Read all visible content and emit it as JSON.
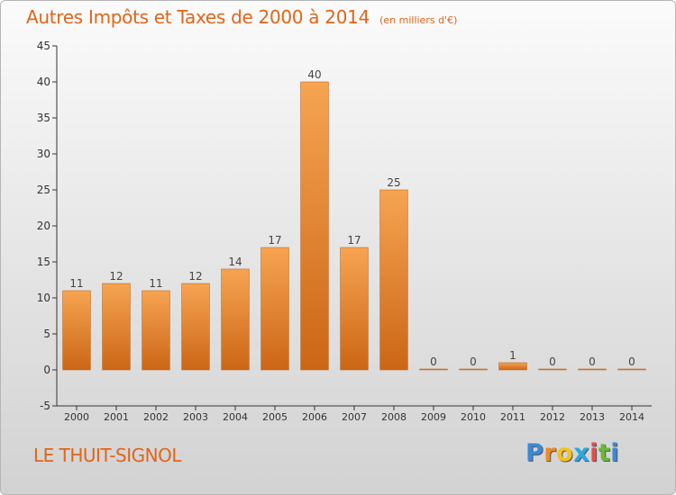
{
  "chart_data": {
    "type": "bar",
    "title": "Autres Impôts et Taxes de 2000 à 2014",
    "subtitle": "(en milliers d'€)",
    "categories": [
      "2000",
      "2001",
      "2002",
      "2003",
      "2004",
      "2005",
      "2006",
      "2007",
      "2008",
      "2009",
      "2010",
      "2011",
      "2012",
      "2013",
      "2014"
    ],
    "values": [
      11,
      12,
      11,
      12,
      14,
      17,
      40,
      17,
      25,
      0,
      0,
      1,
      0,
      0,
      0
    ],
    "ylim": [
      -5,
      45
    ],
    "yticks": [
      -5,
      0,
      5,
      10,
      15,
      20,
      25,
      30,
      35,
      40,
      45
    ],
    "grid": false,
    "bar_color_top": "#f6a452",
    "bar_color_bottom": "#cb6616"
  },
  "commune": "LE THUIT-SIGNOL",
  "logo": {
    "letters": [
      "P",
      "r",
      "o",
      "x",
      "i",
      "t",
      "i"
    ],
    "colors": [
      "#3a8ad8",
      "#f08a24",
      "#f4c020",
      "#2aa8e0",
      "#e24d4d",
      "#6ab73a",
      "#3a8ad8"
    ]
  }
}
